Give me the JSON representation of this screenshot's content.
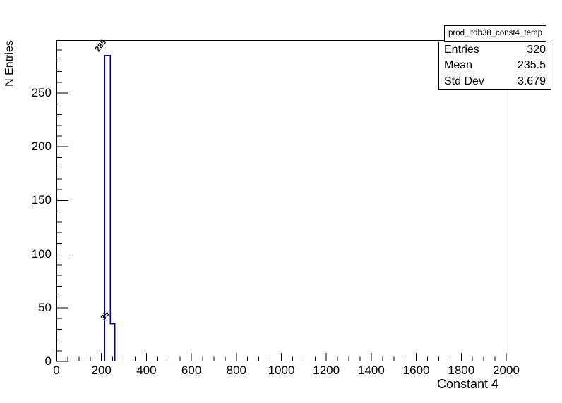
{
  "chart_data": {
    "type": "bar",
    "title": "prod_ltdb38_const4_temp",
    "xlabel": "Constant 4",
    "ylabel": "N Entries",
    "xlim": [
      0,
      2000
    ],
    "ylim": [
      0,
      299.25
    ],
    "x_major_ticks": [
      0,
      200,
      400,
      600,
      800,
      1000,
      1200,
      1400,
      1600,
      1800,
      2000
    ],
    "x_minor_step": 50,
    "y_major_ticks": [
      0,
      50,
      100,
      150,
      200,
      250
    ],
    "y_minor_step": 10,
    "bins": [
      {
        "x_start": 215,
        "x_end": 240,
        "count": 285,
        "label": "285"
      },
      {
        "x_start": 240,
        "x_end": 260,
        "count": 35,
        "label": "35"
      }
    ],
    "grid": false,
    "legend_position": "top-right",
    "colors": {
      "histogram_line": "#000099",
      "axis_line": "#000000",
      "text": "#000000",
      "background": "#ffffff"
    }
  },
  "stats_box": {
    "title": "prod_ltdb38_const4_temp",
    "rows": [
      {
        "label": "Entries",
        "value": "320"
      },
      {
        "label": "Mean",
        "value": "235.5"
      },
      {
        "label": "Std Dev",
        "value": "3.679"
      }
    ]
  }
}
